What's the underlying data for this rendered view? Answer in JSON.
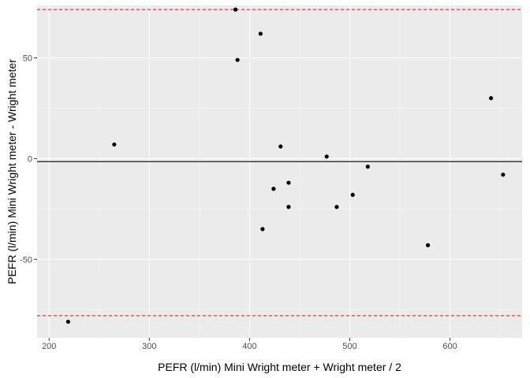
{
  "chart_data": {
    "type": "scatter",
    "xlabel": "PEFR (l/min) Mini Wright meter + Wright meter / 2",
    "ylabel": "PEFR (l/min) Mini Wright meter - Wright meter",
    "xlim": [
      188,
      672
    ],
    "ylim": [
      -89,
      76
    ],
    "x_ticks": [
      200,
      300,
      400,
      500,
      600
    ],
    "x_tick_labels": [
      "200",
      "300",
      "400",
      "500",
      "600"
    ],
    "y_ticks": [
      -50,
      0,
      50
    ],
    "y_tick_labels": [
      "-50",
      "0",
      "50"
    ],
    "x_minor_ticks": [
      250,
      350,
      450,
      550,
      650
    ],
    "y_minor_ticks": [
      -75,
      -25,
      25,
      75
    ],
    "grid": true,
    "points": [
      {
        "x": 219,
        "y": -81
      },
      {
        "x": 265,
        "y": 7
      },
      {
        "x": 386,
        "y": 74
      },
      {
        "x": 388,
        "y": 49
      },
      {
        "x": 411,
        "y": 62
      },
      {
        "x": 413,
        "y": -35
      },
      {
        "x": 424,
        "y": -15
      },
      {
        "x": 431,
        "y": 6
      },
      {
        "x": 439,
        "y": -12
      },
      {
        "x": 439,
        "y": -24
      },
      {
        "x": 477,
        "y": 1
      },
      {
        "x": 487,
        "y": -24
      },
      {
        "x": 503,
        "y": -18
      },
      {
        "x": 518,
        "y": -4
      },
      {
        "x": 578,
        "y": -43
      },
      {
        "x": 641,
        "y": 30
      },
      {
        "x": 653,
        "y": -8
      }
    ],
    "hlines": [
      {
        "y": 74,
        "style": "dashed",
        "color": "#ff0000"
      },
      {
        "y": -1.5,
        "style": "solid",
        "color": "#000000"
      },
      {
        "y": -78,
        "style": "dashed",
        "color": "#ff0000"
      }
    ],
    "colors": {
      "panel_background": "#ebebeb",
      "grid_major": "#ffffff",
      "grid_minor": "#f5f5f5",
      "point": "#000000",
      "tick_mark": "#333333"
    }
  }
}
